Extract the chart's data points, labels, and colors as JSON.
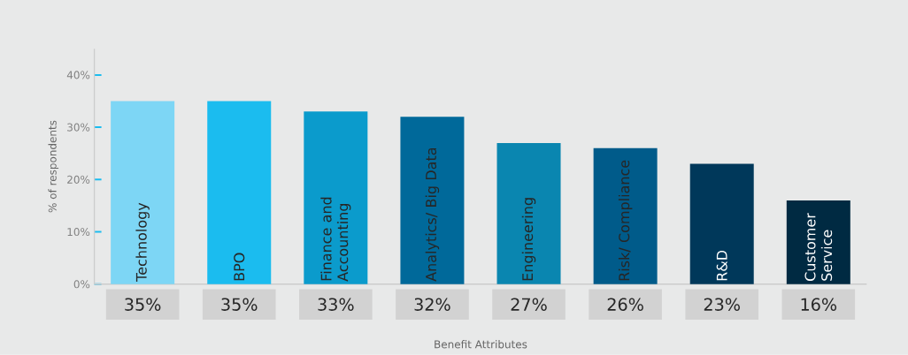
{
  "chart_data": {
    "type": "bar",
    "xlabel": "Benefit Attributes",
    "ylabel": "% of respondents",
    "categories": [
      "Technology",
      "BPO",
      "Finance and Accounting",
      "Analytics/ Big Data",
      "Engineering",
      "Risk/ Compliance",
      "R&D",
      "Customer Service"
    ],
    "values": [
      35,
      35,
      33,
      32,
      27,
      26,
      23,
      16
    ],
    "value_labels": [
      "35%",
      "35%",
      "33%",
      "32%",
      "27%",
      "26%",
      "23%",
      "16%"
    ],
    "colors": [
      "#7dd6f5",
      "#1bbcef",
      "#0b9bcc",
      "#00699a",
      "#0a86b0",
      "#005b8a",
      "#00385a",
      "#002a42"
    ],
    "ylim": [
      0,
      45
    ],
    "yticks": [
      {
        "value": 0,
        "label": "0%"
      },
      {
        "value": 10,
        "label": "10%"
      },
      {
        "value": 20,
        "label": "20%"
      },
      {
        "value": 30,
        "label": "30%"
      },
      {
        "value": 40,
        "label": "40%"
      }
    ]
  }
}
